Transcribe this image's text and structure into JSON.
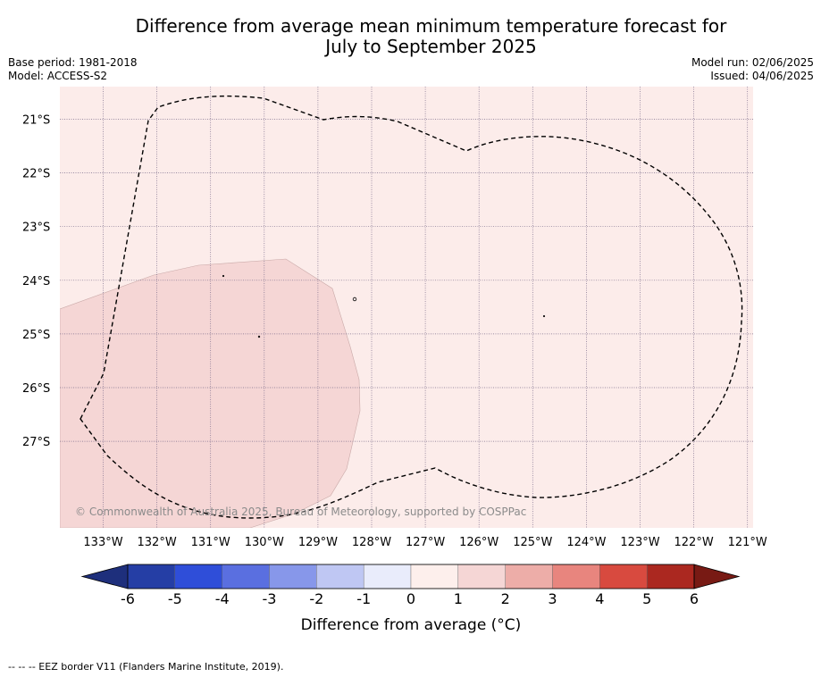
{
  "title": {
    "line1": "Difference from average mean minimum temperature forecast for",
    "line2": "July to September 2025"
  },
  "meta": {
    "base_period": "Base period: 1981-2018",
    "model": "Model: ACCESS-S2",
    "model_run": "Model run: 02/06/2025",
    "issued": "Issued: 04/06/2025"
  },
  "map": {
    "lon_labels": [
      "133°W",
      "132°W",
      "131°W",
      "130°W",
      "129°W",
      "128°W",
      "127°W",
      "126°W",
      "125°W",
      "124°W",
      "123°W",
      "122°W",
      "121°W"
    ],
    "lat_labels": [
      "21°S",
      "22°S",
      "23°S",
      "24°S",
      "25°S",
      "26°S",
      "27°S"
    ],
    "copyright": "© Commonwealth of Australia 2025, Bureau of Meteorology, supported by COSPPac",
    "colors": {
      "background_bin_0_1": "#fcecea",
      "patch_bin_1_2": "#f5d6d5"
    }
  },
  "colorbar": {
    "ticks": [
      "-6",
      "-5",
      "-4",
      "-3",
      "-2",
      "-1",
      "0",
      "1",
      "2",
      "3",
      "4",
      "5",
      "6"
    ],
    "label": "Difference from average (°C)",
    "colors": [
      "#253ea5",
      "#2f4ed9",
      "#5a6fe0",
      "#8797ea",
      "#bfc7f3",
      "#e9ecfb",
      "#fdefec",
      "#f5d6d5",
      "#edada8",
      "#e8857e",
      "#d84a3f",
      "#ab2820"
    ],
    "low_extend_color": "#1e2f7c",
    "high_extend_color": "#781a14"
  },
  "legend_note": "--  --  -- EEZ border V11 (Flanders Marine Institute, 2019)."
}
